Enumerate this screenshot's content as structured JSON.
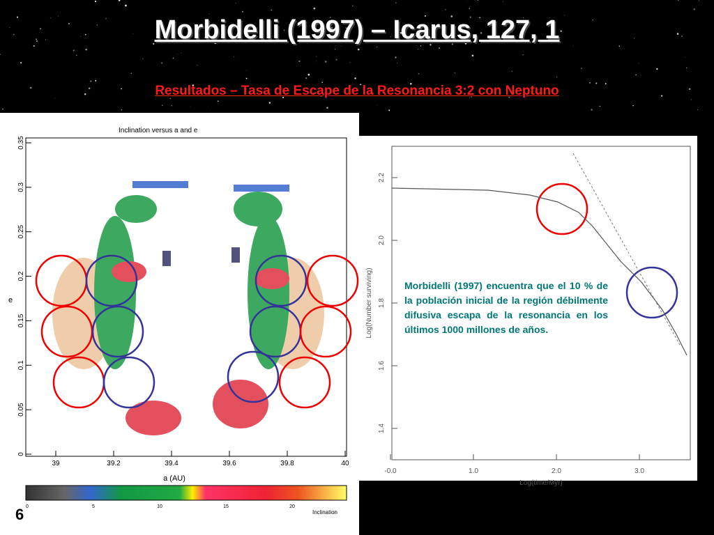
{
  "header": {
    "title": "Morbidelli (1997) – Icarus, 127, 1",
    "subtitle": "Resultados – Tasa de Escape de la Resonancia 3:2 con Neptuno"
  },
  "left_figure": {
    "title": "Inclination versus a and e",
    "y_label": "e",
    "x_label": "a (AU)",
    "y_ticks": [
      "0",
      "0.05",
      "0.1",
      "0.15",
      "0.2",
      "0.25",
      "0.3",
      "0.35"
    ],
    "x_ticks": [
      "39",
      "39.2",
      "39.4",
      "39.6",
      "39.8",
      "40"
    ],
    "colorbar_ticks": [
      "0",
      "5",
      "10",
      "15",
      "20"
    ],
    "colorbar_label": "Inclination"
  },
  "right_figure": {
    "y_label": "Log(Number surviving)",
    "x_label": "Log(time/Myr)",
    "y_ticks": [
      "1.4",
      "1.6",
      "1.8",
      "2.0",
      "2.2"
    ],
    "x_ticks": [
      "-0.0",
      "1.0",
      "2.0",
      "3.0"
    ]
  },
  "paragraph": "Morbidelli (1997) encuentra que el 10 % de la población inicial de la región débilmente difusiva escapa de la resonancia en los últimos 1000 millones de años.",
  "slide_number": "6"
}
